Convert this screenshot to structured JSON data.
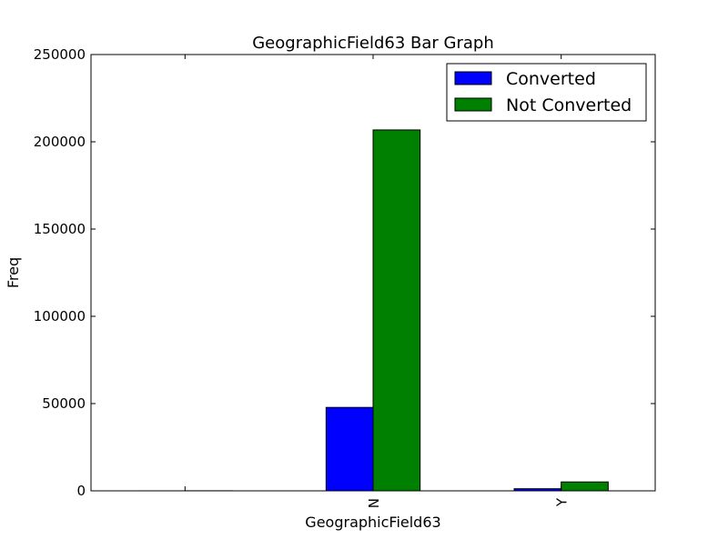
{
  "chart_data": {
    "type": "bar",
    "title": "GeographicField63 Bar Graph",
    "xlabel": "GeographicField63",
    "ylabel": "Freq",
    "categories": [
      "",
      "N",
      "Y"
    ],
    "series": [
      {
        "name": "Converted",
        "color": "#0000ff",
        "values": [
          3,
          47800,
          1200
        ]
      },
      {
        "name": "Not Converted",
        "color": "#008000",
        "values": [
          40,
          206800,
          5100
        ]
      }
    ],
    "ylim": [
      0,
      250000
    ],
    "yticks": [
      0,
      50000,
      100000,
      150000,
      200000,
      250000
    ],
    "ytick_labels": [
      "0",
      "50000",
      "100000",
      "150000",
      "200000",
      "250000"
    ],
    "grid": false,
    "legend_position": "top-right"
  }
}
